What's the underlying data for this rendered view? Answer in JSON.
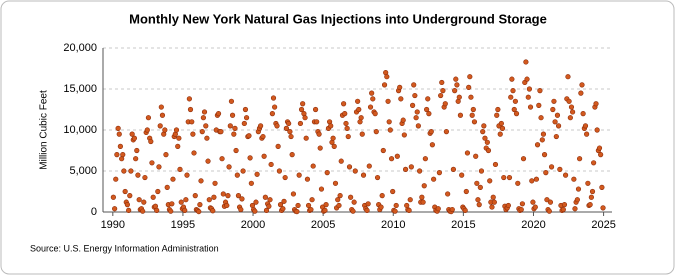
{
  "chart_data": {
    "type": "scatter",
    "title": "Monthly New York Natural Gas Injections into Underground Storage",
    "ylabel": "Million Cubic Feet",
    "source": "Source: U.S. Energy Information Administration",
    "color": "#d2591e",
    "stroke": "#8b2a08",
    "grid": true,
    "xlim": [
      1989.3,
      2025.6
    ],
    "xticks": [
      1990,
      1995,
      2000,
      2005,
      2010,
      2015,
      2020,
      2025
    ],
    "ylim": [
      0,
      20000
    ],
    "yticks": [
      0,
      {
        "value": 5000,
        "label": "5,000"
      },
      {
        "value": 10000,
        "label": "10,000"
      },
      {
        "value": 15000,
        "label": "15,000"
      },
      {
        "value": 20000,
        "label": "20,000"
      }
    ],
    "x": [
      1990.04,
      1990.13,
      1990.21,
      1990.29,
      1990.38,
      1990.46,
      1990.54,
      1990.63,
      1990.71,
      1990.79,
      1990.88,
      1990.96,
      1991.04,
      1991.13,
      1991.21,
      1991.29,
      1991.38,
      1991.46,
      1991.54,
      1991.63,
      1991.71,
      1991.79,
      1991.88,
      1991.96,
      1992.04,
      1992.13,
      1992.21,
      1992.29,
      1992.38,
      1992.46,
      1992.54,
      1992.63,
      1992.71,
      1992.79,
      1992.88,
      1992.96,
      1993.04,
      1993.13,
      1993.21,
      1993.29,
      1993.38,
      1993.46,
      1993.54,
      1993.63,
      1993.71,
      1993.79,
      1993.88,
      1993.96,
      1994.04,
      1994.13,
      1994.21,
      1994.29,
      1994.38,
      1994.46,
      1994.54,
      1994.63,
      1994.71,
      1994.79,
      1994.88,
      1994.96,
      1995.04,
      1995.13,
      1995.21,
      1995.29,
      1995.38,
      1995.46,
      1995.54,
      1995.63,
      1995.71,
      1995.79,
      1995.88,
      1995.96,
      1996.04,
      1996.13,
      1996.21,
      1996.29,
      1996.38,
      1996.46,
      1996.54,
      1996.63,
      1996.71,
      1996.79,
      1996.88,
      1996.96,
      1997.04,
      1997.13,
      1997.21,
      1997.29,
      1997.38,
      1997.46,
      1997.54,
      1997.63,
      1997.71,
      1997.79,
      1997.88,
      1997.96,
      1998.04,
      1998.13,
      1998.21,
      1998.29,
      1998.38,
      1998.46,
      1998.54,
      1998.63,
      1998.71,
      1998.79,
      1998.88,
      1998.96,
      1999.04,
      1999.13,
      1999.21,
      1999.29,
      1999.38,
      1999.46,
      1999.54,
      1999.63,
      1999.71,
      1999.79,
      1999.88,
      1999.96,
      2000.04,
      2000.13,
      2000.21,
      2000.29,
      2000.38,
      2000.46,
      2000.54,
      2000.63,
      2000.71,
      2000.79,
      2000.88,
      2000.96,
      2001.04,
      2001.13,
      2001.21,
      2001.29,
      2001.38,
      2001.46,
      2001.54,
      2001.63,
      2001.71,
      2001.79,
      2001.88,
      2001.96,
      2002.04,
      2002.13,
      2002.21,
      2002.29,
      2002.38,
      2002.46,
      2002.54,
      2002.63,
      2002.71,
      2002.79,
      2002.88,
      2002.96,
      2003.04,
      2003.13,
      2003.21,
      2003.29,
      2003.38,
      2003.46,
      2003.54,
      2003.63,
      2003.71,
      2003.79,
      2003.88,
      2003.96,
      2004.04,
      2004.13,
      2004.21,
      2004.29,
      2004.38,
      2004.46,
      2004.54,
      2004.63,
      2004.71,
      2004.79,
      2004.88,
      2004.96,
      2005.04,
      2005.13,
      2005.21,
      2005.29,
      2005.38,
      2005.46,
      2005.54,
      2005.63,
      2005.71,
      2005.79,
      2005.88,
      2005.96,
      2006.04,
      2006.13,
      2006.21,
      2006.29,
      2006.38,
      2006.46,
      2006.54,
      2006.63,
      2006.71,
      2006.79,
      2006.88,
      2006.96,
      2007.04,
      2007.13,
      2007.21,
      2007.29,
      2007.38,
      2007.46,
      2007.54,
      2007.63,
      2007.71,
      2007.79,
      2007.88,
      2007.96,
      2008.04,
      2008.13,
      2008.21,
      2008.29,
      2008.38,
      2008.46,
      2008.54,
      2008.63,
      2008.71,
      2008.79,
      2008.88,
      2008.96,
      2009.04,
      2009.13,
      2009.21,
      2009.29,
      2009.38,
      2009.46,
      2009.54,
      2009.63,
      2009.71,
      2009.79,
      2009.88,
      2009.96,
      2010.04,
      2010.13,
      2010.21,
      2010.29,
      2010.38,
      2010.46,
      2010.54,
      2010.63,
      2010.71,
      2010.79,
      2010.88,
      2010.96,
      2011.04,
      2011.13,
      2011.21,
      2011.29,
      2011.38,
      2011.46,
      2011.54,
      2011.63,
      2011.71,
      2011.79,
      2011.88,
      2011.96,
      2012.04,
      2012.13,
      2012.21,
      2012.29,
      2012.38,
      2012.46,
      2012.54,
      2012.63,
      2012.71,
      2012.79,
      2012.88,
      2012.96,
      2013.04,
      2013.13,
      2013.21,
      2013.29,
      2013.38,
      2013.46,
      2013.54,
      2013.63,
      2013.71,
      2013.79,
      2013.88,
      2013.96,
      2014.04,
      2014.13,
      2014.21,
      2014.29,
      2014.38,
      2014.46,
      2014.54,
      2014.63,
      2014.71,
      2014.79,
      2014.88,
      2014.96,
      2015.04,
      2015.13,
      2015.21,
      2015.29,
      2015.38,
      2015.46,
      2015.54,
      2015.63,
      2015.71,
      2015.79,
      2015.88,
      2015.96,
      2016.04,
      2016.13,
      2016.21,
      2016.29,
      2016.38,
      2016.46,
      2016.54,
      2016.63,
      2016.71,
      2016.79,
      2016.88,
      2016.96,
      2017.04,
      2017.13,
      2017.21,
      2017.29,
      2017.38,
      2017.46,
      2017.54,
      2017.63,
      2017.71,
      2017.79,
      2017.88,
      2017.96,
      2018.04,
      2018.13,
      2018.21,
      2018.29,
      2018.38,
      2018.46,
      2018.54,
      2018.63,
      2018.71,
      2018.79,
      2018.88,
      2018.96,
      2019.04,
      2019.13,
      2019.21,
      2019.29,
      2019.38,
      2019.46,
      2019.54,
      2019.63,
      2019.71,
      2019.79,
      2019.88,
      2019.96,
      2020.04,
      2020.13,
      2020.21,
      2020.29,
      2020.38,
      2020.46,
      2020.54,
      2020.63,
      2020.71,
      2020.79,
      2020.88,
      2020.96,
      2021.04,
      2021.13,
      2021.21,
      2021.29,
      2021.38,
      2021.46,
      2021.54,
      2021.63,
      2021.71,
      2021.79,
      2021.88,
      2021.96,
      2022.04,
      2022.13,
      2022.21,
      2022.29,
      2022.38,
      2022.46,
      2022.54,
      2022.63,
      2022.71,
      2022.79,
      2022.88,
      2022.96,
      2023.04,
      2023.13,
      2023.21,
      2023.29,
      2023.38,
      2023.46,
      2023.54,
      2023.63,
      2023.71,
      2023.79,
      2023.88,
      2023.96,
      2024.04,
      2024.13,
      2024.21,
      2024.29,
      2024.38,
      2024.46,
      2024.54,
      2024.63,
      2024.71,
      2024.79,
      2024.88,
      2024.96
    ],
    "values": [
      1800,
      400,
      4000,
      7000,
      10200,
      9500,
      8000,
      6500,
      7000,
      5000,
      2500,
      1200,
      900,
      200,
      2000,
      5000,
      9500,
      8800,
      9000,
      6500,
      7500,
      4500,
      1500,
      300,
      400,
      100,
      1200,
      4200,
      9700,
      10000,
      11500,
      9000,
      8600,
      6000,
      1800,
      600,
      700,
      200,
      2500,
      5500,
      10500,
      12800,
      11800,
      9500,
      10000,
      7000,
      3000,
      900,
      300,
      100,
      1000,
      4000,
      9200,
      9500,
      10000,
      8000,
      9000,
      5200,
      1200,
      400,
      600,
      200,
      1500,
      4500,
      11000,
      13800,
      12500,
      11000,
      9500,
      7200,
      2000,
      300,
      200,
      50,
      900,
      3800,
      9800,
      11500,
      12200,
      10500,
      9000,
      6200,
      1500,
      500,
      400,
      150,
      1800,
      3500,
      10000,
      11800,
      12000,
      9800,
      9800,
      6500,
      2200,
      700,
      1200,
      800,
      2000,
      5500,
      10500,
      13500,
      11800,
      9500,
      10200,
      7500,
      4500,
      2000,
      600,
      300,
      1600,
      5000,
      10800,
      12500,
      11500,
      9200,
      9300,
      6600,
      3500,
      800,
      300,
      100,
      1200,
      4600,
      9800,
      10200,
      10500,
      9000,
      9200,
      6800,
      1800,
      200,
      1000,
      700,
      1500,
      5800,
      12000,
      13900,
      12800,
      10800,
      10500,
      8000,
      5000,
      900,
      200,
      400,
      1300,
      4200,
      10200,
      11000,
      10800,
      9800,
      9200,
      7000,
      2200,
      300,
      100,
      50,
      800,
      4500,
      10800,
      12500,
      13200,
      12000,
      11500,
      9000,
      4000,
      800,
      200,
      300,
      1500,
      5600,
      11000,
      12500,
      11000,
      9800,
      9500,
      7800,
      2800,
      600,
      100,
      200,
      900,
      4800,
      10200,
      11000,
      10500,
      8500,
      9000,
      8000,
      3500,
      500,
      1500,
      800,
      2000,
      6200,
      11800,
      13200,
      12000,
      10800,
      10200,
      9200,
      5500,
      1800,
      300,
      100,
      1200,
      5000,
      12200,
      13500,
      12500,
      11000,
      11500,
      9500,
      4500,
      800,
      400,
      200,
      1000,
      5600,
      12800,
      14500,
      13800,
      12200,
      12000,
      9800,
      4200,
      900,
      300,
      600,
      2000,
      7500,
      15500,
      17000,
      16500,
      13500,
      11000,
      10000,
      6500,
      2500,
      200,
      100,
      800,
      6800,
      14800,
      15200,
      13800,
      10800,
      11200,
      9400,
      5200,
      800,
      300,
      200,
      1500,
      5500,
      13000,
      15500,
      14200,
      11500,
      12200,
      10500,
      5000,
      1200,
      1800,
      1200,
      3200,
      6500,
      12500,
      13800,
      12000,
      9600,
      9800,
      8200,
      4000,
      600,
      200,
      100,
      400,
      4800,
      14200,
      15800,
      14800,
      12800,
      13200,
      9800,
      2200,
      300,
      100,
      50,
      300,
      5200,
      14800,
      16200,
      15500,
      13500,
      14000,
      11800,
      4500,
      600,
      400,
      200,
      2500,
      7200,
      15200,
      16500,
      14000,
      11800,
      12500,
      11000,
      6800,
      3500,
      1500,
      900,
      3000,
      5000,
      9800,
      10500,
      9000,
      7800,
      8500,
      7500,
      3800,
      1200,
      600,
      1800,
      1200,
      5800,
      11800,
      12500,
      10500,
      9500,
      10800,
      10200,
      4200,
      700,
      300,
      500,
      800,
      4200,
      14000,
      16200,
      14800,
      12500,
      13500,
      12000,
      3500,
      400,
      200,
      300,
      1000,
      6500,
      15800,
      18300,
      16200,
      14000,
      15000,
      12800,
      3800,
      1200,
      400,
      600,
      4000,
      8200,
      13000,
      14800,
      11500,
      8800,
      9500,
      7000,
      4800,
      1500,
      300,
      100,
      1200,
      5500,
      12500,
      13500,
      11000,
      9200,
      11800,
      10500,
      5200,
      800,
      200,
      300,
      900,
      4500,
      13800,
      16500,
      13500,
      11500,
      12800,
      12200,
      4000,
      400,
      1200,
      1500,
      2800,
      6500,
      14500,
      15500,
      12000,
      10200,
      10500,
      9500,
      3500,
      800,
      900,
      1800,
      2500,
      6000,
      12800,
      13200,
      10000,
      7500,
      7800,
      7000,
      3000,
      500
    ]
  }
}
